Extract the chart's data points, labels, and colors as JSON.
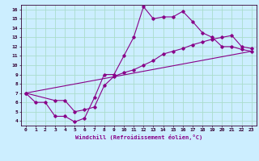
{
  "xlabel": "Windchill (Refroidissement éolien,°C)",
  "bg_color": "#cceeff",
  "line_color": "#880088",
  "grid_color": "#aaddcc",
  "xlim": [
    -0.5,
    23.5
  ],
  "ylim": [
    3.5,
    16.5
  ],
  "xticks": [
    0,
    1,
    2,
    3,
    4,
    5,
    6,
    7,
    8,
    9,
    10,
    11,
    12,
    13,
    14,
    15,
    16,
    17,
    18,
    19,
    20,
    21,
    22,
    23
  ],
  "yticks": [
    4,
    5,
    6,
    7,
    8,
    9,
    10,
    11,
    12,
    13,
    14,
    15,
    16
  ],
  "series1_x": [
    0,
    1,
    2,
    3,
    4,
    5,
    6,
    7,
    8,
    9,
    10,
    11,
    12,
    13,
    14,
    15,
    16,
    17,
    18,
    19,
    20,
    21,
    22,
    23
  ],
  "series1_y": [
    7.0,
    6.0,
    6.0,
    4.5,
    4.5,
    3.9,
    4.3,
    6.5,
    9.0,
    9.0,
    11.0,
    13.0,
    16.3,
    15.0,
    15.2,
    15.2,
    15.8,
    14.7,
    13.5,
    13.0,
    12.0,
    12.0,
    11.7,
    11.5
  ],
  "series2_x": [
    0,
    3,
    4,
    5,
    6,
    7,
    8,
    9,
    10,
    11,
    12,
    13,
    14,
    15,
    16,
    17,
    18,
    19,
    20,
    21,
    22,
    23
  ],
  "series2_y": [
    7.0,
    6.2,
    6.2,
    5.0,
    5.2,
    5.5,
    7.8,
    8.8,
    9.2,
    9.5,
    10.0,
    10.5,
    11.2,
    11.5,
    11.8,
    12.2,
    12.5,
    12.8,
    13.0,
    13.2,
    12.0,
    11.8
  ],
  "series3_x": [
    0,
    23
  ],
  "series3_y": [
    7.0,
    11.5
  ]
}
